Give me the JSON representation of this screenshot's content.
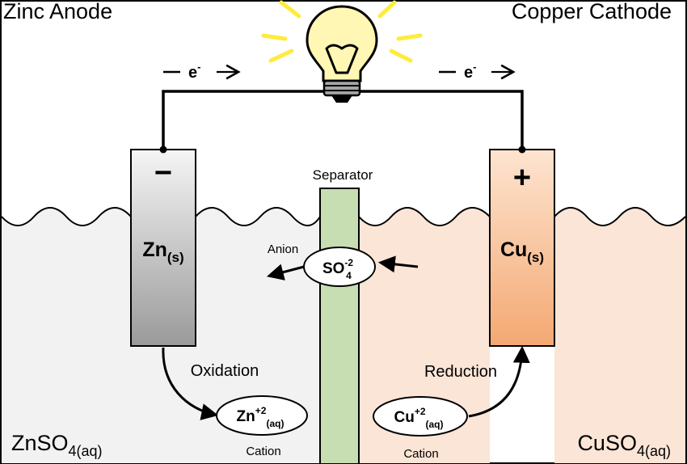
{
  "titles": {
    "anode": "Zinc Anode",
    "cathode": "Copper Cathode"
  },
  "electron_flow": {
    "left": {
      "symbol": "e",
      "charge": "-"
    },
    "right": {
      "symbol": "e",
      "charge": "-"
    }
  },
  "anode": {
    "sign": "−",
    "element": "Zn",
    "state": "(s)"
  },
  "cathode": {
    "sign": "+",
    "element": "Cu",
    "state": "(s)"
  },
  "separator": {
    "label": "Separator"
  },
  "anion": {
    "label": "Anion",
    "formula": "SO",
    "superscript": "-2",
    "subscript": "4"
  },
  "oxidation": {
    "label": "Oxidation",
    "ion": "Zn",
    "superscript": "+2",
    "subscript": "(aq)",
    "caption": "Cation"
  },
  "reduction": {
    "label": "Reduction",
    "ion": "Cu",
    "superscript": "+2",
    "subscript": "(aq)",
    "caption": "Cation"
  },
  "solutions": {
    "left": {
      "formula": "ZnSO",
      "subscript": "4(aq)"
    },
    "right": {
      "formula": "CuSO",
      "subscript": "4(aq)"
    }
  },
  "colors": {
    "left_solution": "#f2f2f2",
    "right_solution": "#fbe5d6",
    "zinc_top": "#f5f5f5",
    "zinc_bottom": "#9a9a9a",
    "copper_top": "#fde4d0",
    "copper_bottom": "#f4a872",
    "separator": "#c6deb2",
    "bulb_glass": "#fff7b3",
    "bulb_rays": "#ffeb3b",
    "bulb_base": "#a6a6a6"
  }
}
